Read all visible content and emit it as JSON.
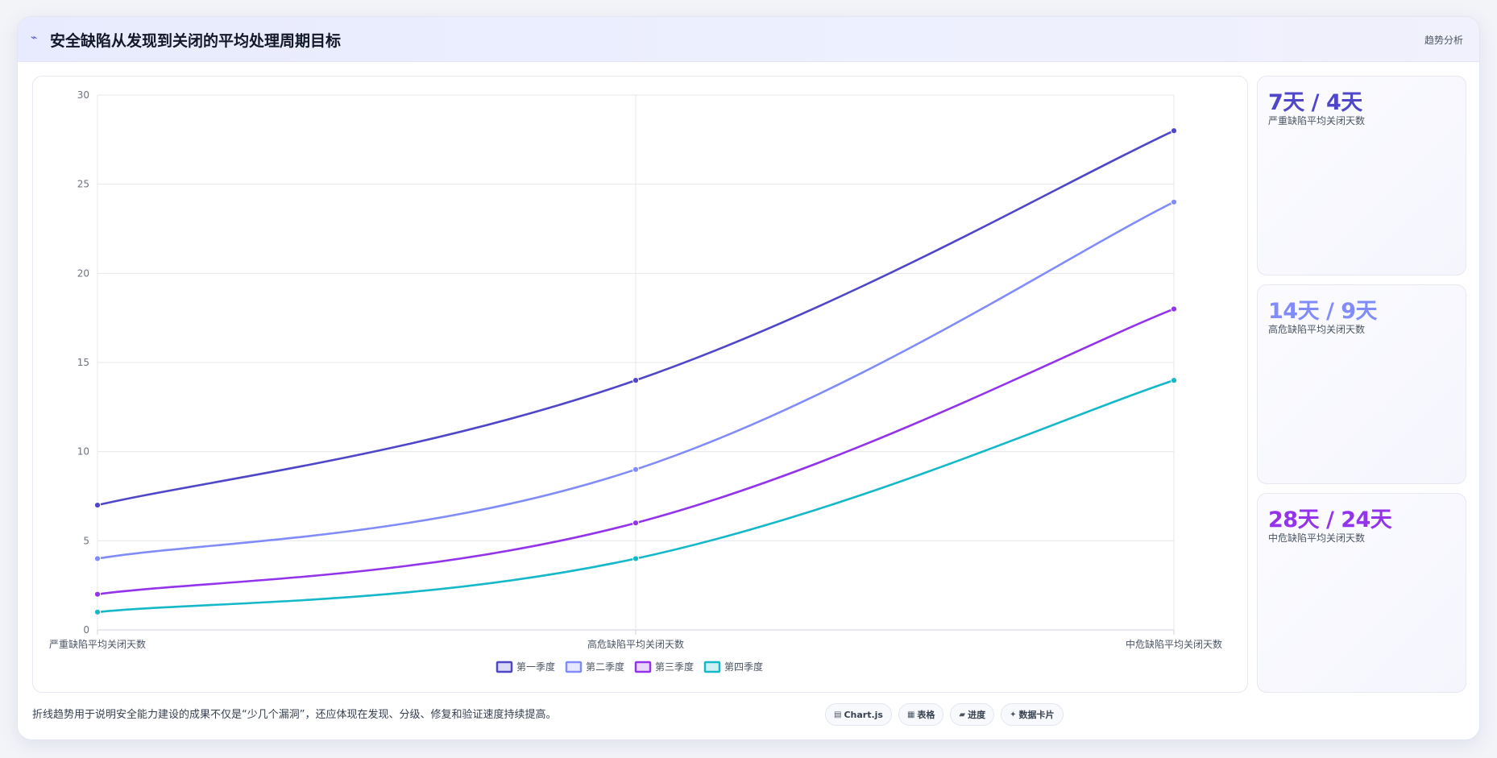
{
  "header": {
    "icon": "chart-line-icon",
    "icon_glyph": "⌁",
    "title": "安全缺陷从发现到关闭的平均处理周期目标",
    "tag": "趋势分析"
  },
  "chart_data": {
    "type": "line",
    "categories": [
      "严重缺陷平均关闭天数",
      "高危缺陷平均关闭天数",
      "中危缺陷平均关闭天数"
    ],
    "series": [
      {
        "name": "第一季度",
        "values": [
          7,
          14,
          28
        ],
        "color": "#4f46c8"
      },
      {
        "name": "第二季度",
        "values": [
          4,
          9,
          24
        ],
        "color": "#818cf8"
      },
      {
        "name": "第三季度",
        "values": [
          2,
          6,
          18
        ],
        "color": "#9333ea"
      },
      {
        "name": "第四季度",
        "values": [
          1,
          4,
          14
        ],
        "color": "#14b8c8"
      }
    ],
    "ylim": [
      0,
      30
    ],
    "yticks": [
      0,
      5,
      10,
      15,
      20,
      25,
      30
    ],
    "grid": true,
    "legend_position": "bottom",
    "curve": "smooth"
  },
  "kpis": [
    {
      "value": "7天 / 4天",
      "label": "严重缺陷平均关闭天数",
      "color": "#4f46c8"
    },
    {
      "value": "14天 / 9天",
      "label": "高危缺陷平均关闭天数",
      "color": "#818cf8"
    },
    {
      "value": "28天 / 24天",
      "label": "中危缺陷平均关闭天数",
      "color": "#9333ea"
    }
  ],
  "footer": {
    "note": "折线趋势用于说明安全能力建设的成果不仅是“少几个漏洞”，还应体现在发现、分级、修复和验证速度持续提高。",
    "pills": [
      {
        "icon": "chart-icon",
        "glyph": "▤",
        "label": "Chart.js"
      },
      {
        "icon": "table-icon",
        "glyph": "▦",
        "label": "表格"
      },
      {
        "icon": "progress-icon",
        "glyph": "▰",
        "label": "进度"
      },
      {
        "icon": "card-icon",
        "glyph": "✦",
        "label": "数据卡片"
      }
    ]
  }
}
